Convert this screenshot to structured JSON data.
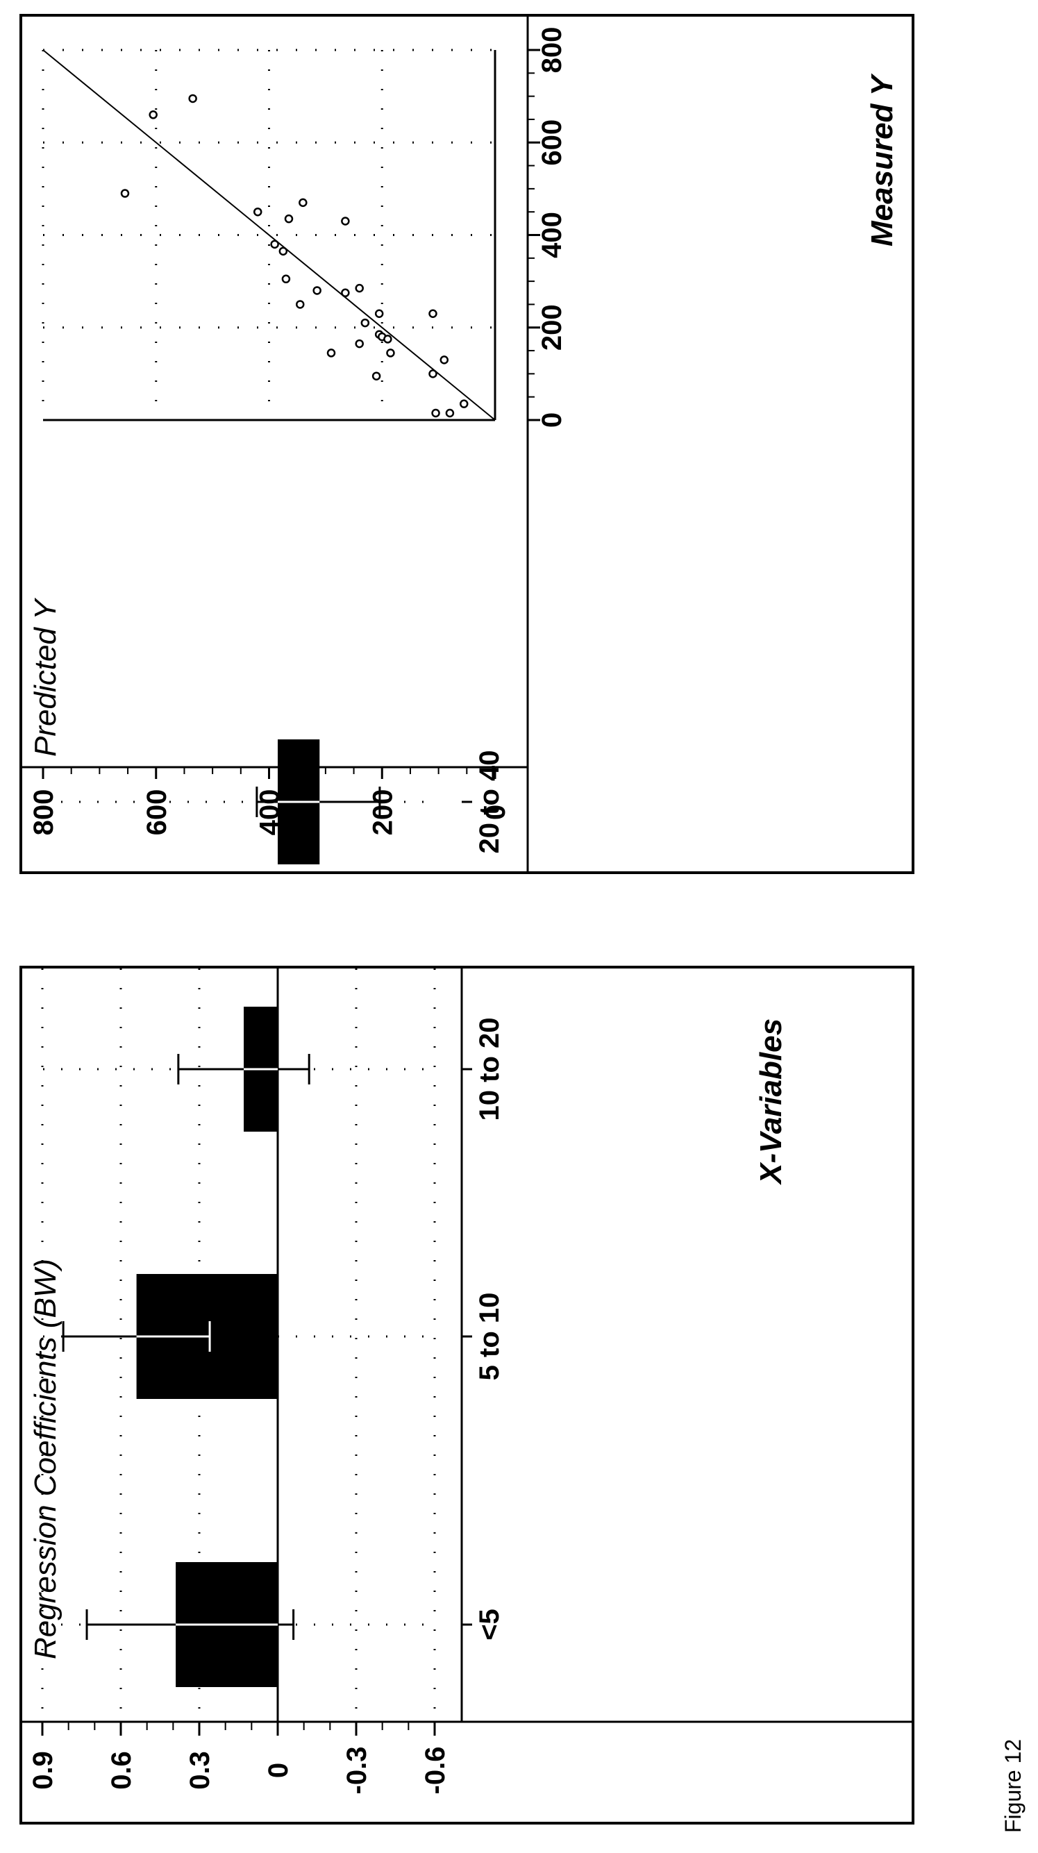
{
  "figure_caption": "Figure 12",
  "chart_data": [
    {
      "type": "bar",
      "title": "Regression Coefficients (BW)",
      "xlabel": "X-Variables",
      "ylabel": "",
      "categories": [
        "<5",
        "5 to 10",
        "10 to 20",
        "20 to 40"
      ],
      "values": [
        0.39,
        0.54,
        0.13,
        -0.16
      ],
      "error_low": [
        -0.06,
        0.26,
        -0.12,
        -0.39
      ],
      "error_high": [
        0.73,
        0.82,
        0.38,
        0.08
      ],
      "ylim": [
        -0.7,
        1.0
      ],
      "yticks": [
        "0.9",
        "0.6",
        "0.3",
        "0",
        "-0.3",
        "-0.6"
      ],
      "ytick_values": [
        0.9,
        0.6,
        0.3,
        0,
        -0.3,
        -0.6
      ],
      "grid": true,
      "bar_color": "#000000",
      "orientation": "rotated 90° counter-clockwise"
    },
    {
      "type": "scatter",
      "title": "",
      "xlabel": "Measured Y",
      "ylabel": "Predicted Y",
      "xlim": [
        -80,
        850
      ],
      "ylim": [
        -20,
        800
      ],
      "xticks": [
        "0",
        "200",
        "400",
        "600",
        "800"
      ],
      "xtick_values": [
        0,
        200,
        400,
        600,
        800
      ],
      "yticks": [
        "800",
        "600",
        "400",
        "200",
        "0"
      ],
      "ytick_values": [
        800,
        600,
        400,
        200,
        0
      ],
      "grid": true,
      "line": {
        "from": [
          0,
          0
        ],
        "to": [
          800,
          800
        ]
      },
      "points": [
        {
          "x": 695,
          "y": 535
        },
        {
          "x": 660,
          "y": 605
        },
        {
          "x": 490,
          "y": 655
        },
        {
          "x": 450,
          "y": 420
        },
        {
          "x": 470,
          "y": 340
        },
        {
          "x": 435,
          "y": 365
        },
        {
          "x": 430,
          "y": 265
        },
        {
          "x": 380,
          "y": 390
        },
        {
          "x": 365,
          "y": 375
        },
        {
          "x": 305,
          "y": 370
        },
        {
          "x": 280,
          "y": 315
        },
        {
          "x": 285,
          "y": 240
        },
        {
          "x": 250,
          "y": 345
        },
        {
          "x": 275,
          "y": 265
        },
        {
          "x": 210,
          "y": 230
        },
        {
          "x": 230,
          "y": 205
        },
        {
          "x": 185,
          "y": 205
        },
        {
          "x": 180,
          "y": 200
        },
        {
          "x": 175,
          "y": 190
        },
        {
          "x": 165,
          "y": 240
        },
        {
          "x": 145,
          "y": 290
        },
        {
          "x": 145,
          "y": 185
        },
        {
          "x": 95,
          "y": 210
        },
        {
          "x": 230,
          "y": 110
        },
        {
          "x": 130,
          "y": 90
        },
        {
          "x": 100,
          "y": 110
        },
        {
          "x": 35,
          "y": 55
        },
        {
          "x": 15,
          "y": 80
        },
        {
          "x": 15,
          "y": 105
        }
      ]
    }
  ]
}
